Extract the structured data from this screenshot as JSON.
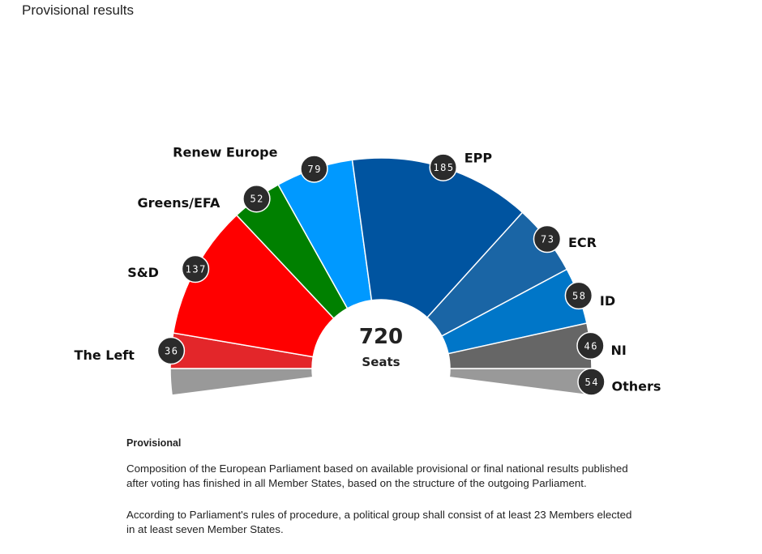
{
  "page": {
    "title": "Provisional results"
  },
  "chart_data": {
    "type": "pie",
    "subtype": "parliament-semicircle",
    "title": "Provisional results",
    "total_label": "720",
    "total_caption": "Seats",
    "total": 720,
    "categories": [
      "The Left",
      "S&D",
      "Greens/EFA",
      "Renew Europe",
      "EPP",
      "ECR",
      "ID",
      "NI",
      "Others"
    ],
    "values": [
      36,
      137,
      52,
      79,
      185,
      73,
      58,
      46,
      54
    ],
    "colors": [
      "#e3262a",
      "#ff0000",
      "#008000",
      "#0099ff",
      "#0054a0",
      "#1a65a5",
      "#0076c8",
      "#666666",
      "#999999"
    ],
    "segments": [
      {
        "name": "The Left",
        "seats": 36,
        "color": "#e3262a"
      },
      {
        "name": "S&D",
        "seats": 137,
        "color": "#ff0000"
      },
      {
        "name": "Greens/EFA",
        "seats": 52,
        "color": "#008000"
      },
      {
        "name": "Renew Europe",
        "seats": 79,
        "color": "#0099ff"
      },
      {
        "name": "EPP",
        "seats": 185,
        "color": "#0054a0"
      },
      {
        "name": "ECR",
        "seats": 73,
        "color": "#1a65a5"
      },
      {
        "name": "ID",
        "seats": 58,
        "color": "#0076c8"
      },
      {
        "name": "NI",
        "seats": 46,
        "color": "#666666"
      },
      {
        "name": "Others",
        "seats": 54,
        "color": "#999999"
      }
    ],
    "legend_position": "labels-around-arc"
  },
  "notes": {
    "heading": "Provisional",
    "paragraphs": [
      "Composition of the European Parliament based on available provisional or final national results published after voting has finished in all Member States, based on the structure of the outgoing Parliament.",
      "According to Parliament's rules of procedure, a political group shall consist of at least 23 Members elected in at least seven Member States."
    ]
  }
}
